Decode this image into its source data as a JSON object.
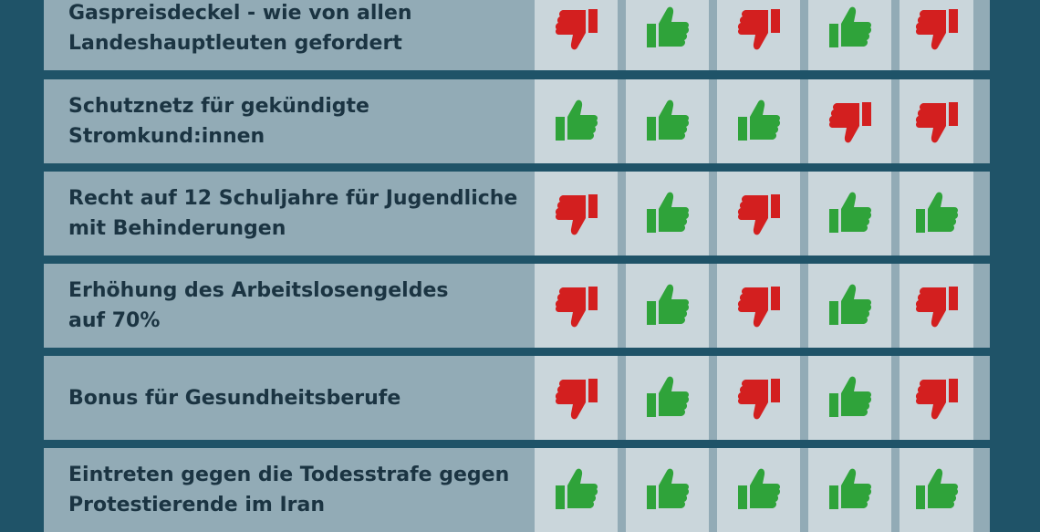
{
  "colors": {
    "background": "#1f5368",
    "row": "#92abb6",
    "vote_cell": "#cad6db",
    "text": "#1b3442",
    "thumb_up": "#2fa33a",
    "thumb_down": "#d31f1f"
  },
  "icons": {
    "up": "thumbs-up-icon",
    "down": "thumbs-down-icon"
  },
  "rows": [
    {
      "label": "Gaspreisdeckel - wie von allen\nLandeshauptleuten gefordert",
      "votes": [
        "down",
        "up",
        "down",
        "up",
        "down"
      ]
    },
    {
      "label": "Schutznetz für gekündigte\nStromkund:innen",
      "votes": [
        "up",
        "up",
        "up",
        "down",
        "down"
      ]
    },
    {
      "label": "Recht auf 12 Schuljahre für Jugendliche\nmit Behinderungen",
      "votes": [
        "down",
        "up",
        "down",
        "up",
        "up"
      ]
    },
    {
      "label": "Erhöhung des Arbeitslosengeldes\nauf 70%",
      "votes": [
        "down",
        "up",
        "down",
        "up",
        "down"
      ]
    },
    {
      "label": "Bonus für Gesundheitsberufe",
      "votes": [
        "down",
        "up",
        "down",
        "up",
        "down"
      ]
    },
    {
      "label": "Eintreten gegen die Todesstrafe gegen\nProtestierende im Iran",
      "votes": [
        "up",
        "up",
        "up",
        "up",
        "up"
      ]
    }
  ]
}
